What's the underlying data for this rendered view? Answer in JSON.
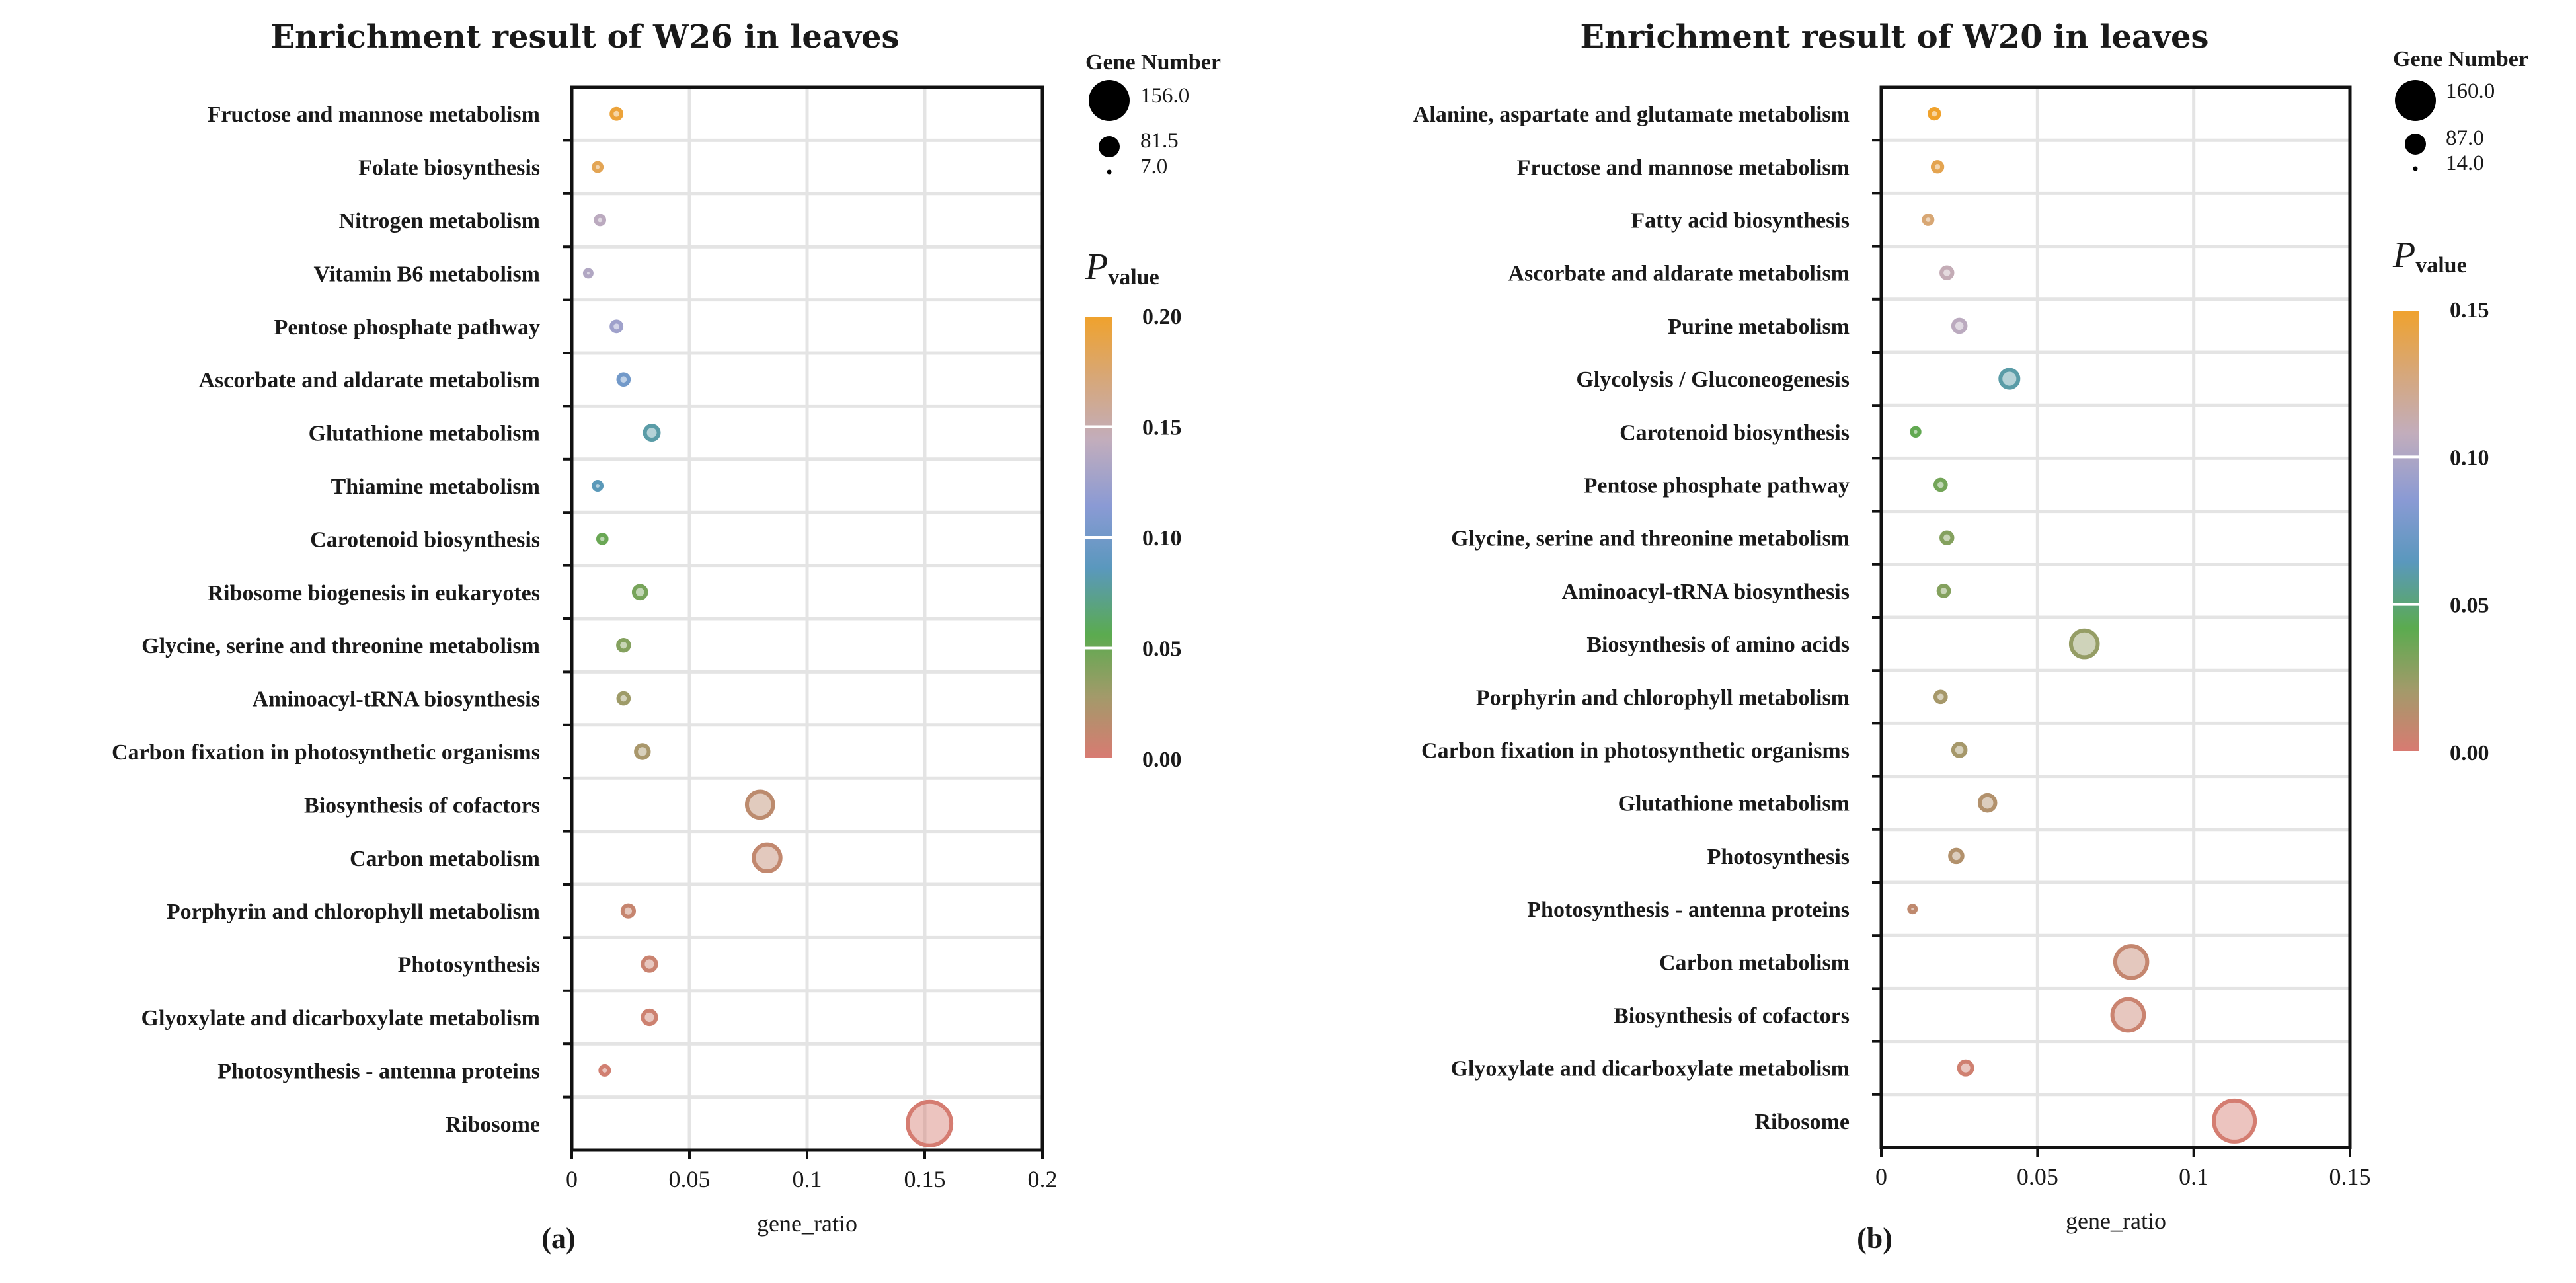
{
  "chart_data": [
    {
      "type": "scatter",
      "panel_label": "(a)",
      "title": "Enrichment result of W26 in leaves",
      "xlabel": "gene_ratio",
      "ylabel": "",
      "xlim": [
        0,
        0.2
      ],
      "xticks": [
        "0",
        "0.05",
        "0.1",
        "0.15",
        "0.2"
      ],
      "xtick_values": [
        0,
        0.05,
        0.1,
        0.15,
        0.2
      ],
      "grid": true,
      "size_legend": {
        "title": "Gene Number",
        "values": [
          156.0,
          81.5,
          7.0
        ],
        "labels": [
          "156.0",
          "81.5",
          "7.0"
        ]
      },
      "color_legend": {
        "title_main": "P",
        "title_sub": "value",
        "ticks": [
          "0.20",
          "0.15",
          "0.10",
          "0.05",
          "0.00"
        ],
        "tick_values": [
          0.2,
          0.15,
          0.1,
          0.05,
          0.0
        ],
        "range": [
          0.0,
          0.2
        ]
      },
      "categories": [
        "Fructose and mannose metabolism",
        "Folate biosynthesis",
        "Nitrogen metabolism",
        "Vitamin B6 metabolism",
        "Pentose phosphate pathway",
        "Ascorbate and aldarate metabolism",
        "Glutathione metabolism",
        "Thiamine metabolism",
        "Carotenoid biosynthesis",
        "Ribosome biogenesis in eukaryotes",
        "Glycine, serine and threonine metabolism",
        "Aminoacyl-tRNA biosynthesis",
        "Carbon fixation in photosynthetic organisms",
        "Biosynthesis of cofactors",
        "Carbon metabolism",
        "Porphyrin and chlorophyll metabolism",
        "Photosynthesis",
        "Glyoxylate and dicarboxylate metabolism",
        "Photosynthesis - antenna proteins",
        "Ribosome"
      ],
      "gene_ratio": [
        0.019,
        0.011,
        0.012,
        0.007,
        0.019,
        0.022,
        0.034,
        0.011,
        0.013,
        0.029,
        0.022,
        0.022,
        0.03,
        0.08,
        0.083,
        0.024,
        0.033,
        0.033,
        0.014,
        0.152
      ],
      "gene_number": [
        20,
        12,
        14,
        7,
        20,
        22,
        36,
        12,
        14,
        30,
        24,
        22,
        32,
        86,
        88,
        26,
        34,
        34,
        15,
        156
      ],
      "pvalue": [
        0.195,
        0.185,
        0.14,
        0.135,
        0.125,
        0.1,
        0.08,
        0.085,
        0.05,
        0.045,
        0.04,
        0.03,
        0.025,
        0.015,
        0.012,
        0.01,
        0.008,
        0.006,
        0.004,
        0.002
      ]
    },
    {
      "type": "scatter",
      "panel_label": "(b)",
      "title": "Enrichment result of W20 in leaves",
      "xlabel": "gene_ratio",
      "ylabel": "",
      "xlim": [
        0,
        0.15
      ],
      "xticks": [
        "0",
        "0.05",
        "0.1",
        "0.15"
      ],
      "xtick_values": [
        0,
        0.05,
        0.1,
        0.15
      ],
      "grid": true,
      "size_legend": {
        "title": "Gene Number",
        "values": [
          160.0,
          87.0,
          14.0
        ],
        "labels": [
          "160.0",
          "87.0",
          "14.0"
        ]
      },
      "color_legend": {
        "title_main": "P",
        "title_sub": "value",
        "ticks": [
          "0.15",
          "0.10",
          "0.05",
          "0.00"
        ],
        "tick_values": [
          0.15,
          0.1,
          0.05,
          0.0
        ],
        "range": [
          0.0,
          0.15
        ]
      },
      "categories": [
        "Alanine, aspartate and glutamate metabolism",
        "Fructose and mannose metabolism",
        "Fatty acid biosynthesis",
        "Ascorbate and aldarate metabolism",
        "Purine metabolism",
        "Glycolysis / Gluconeogenesis",
        "Carotenoid biosynthesis",
        "Pentose phosphate pathway",
        "Glycine, serine and threonine metabolism",
        "Aminoacyl-tRNA biosynthesis",
        "Biosynthesis of amino acids",
        "Porphyrin and chlorophyll metabolism",
        "Carbon fixation in photosynthetic organisms",
        "Glutathione metabolism",
        "Photosynthesis",
        "Photosynthesis - antenna proteins",
        "Carbon metabolism",
        "Biosynthesis of cofactors",
        "Glyoxylate and dicarboxylate metabolism",
        "Ribosome"
      ],
      "gene_ratio": [
        0.017,
        0.018,
        0.015,
        0.021,
        0.025,
        0.041,
        0.011,
        0.019,
        0.021,
        0.02,
        0.065,
        0.019,
        0.025,
        0.034,
        0.024,
        0.01,
        0.08,
        0.079,
        0.027,
        0.113
      ],
      "gene_number": [
        26,
        26,
        22,
        32,
        38,
        62,
        18,
        30,
        32,
        30,
        100,
        30,
        38,
        52,
        38,
        14,
        122,
        120,
        42,
        160
      ],
      "pvalue": [
        0.15,
        0.14,
        0.13,
        0.11,
        0.105,
        0.06,
        0.04,
        0.035,
        0.03,
        0.03,
        0.025,
        0.02,
        0.02,
        0.015,
        0.015,
        0.01,
        0.008,
        0.006,
        0.004,
        0.002
      ]
    }
  ]
}
